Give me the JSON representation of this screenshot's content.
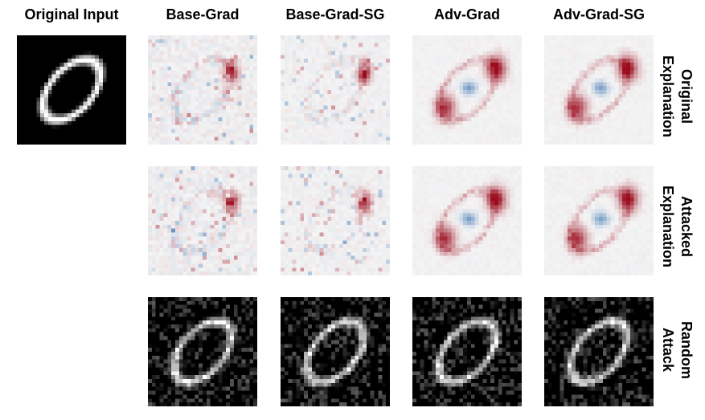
{
  "columns": [
    {
      "key": "original_input",
      "title": "Original Input"
    },
    {
      "key": "base_grad",
      "title": "Base-Grad"
    },
    {
      "key": "base_grad_sg",
      "title": "Base-Grad-SG"
    },
    {
      "key": "adv_grad",
      "title": "Adv-Grad"
    },
    {
      "key": "adv_grad_sg",
      "title": "Adv-Grad-SG"
    }
  ],
  "rows": [
    {
      "key": "original_explanation",
      "line1": "Original",
      "line2": "Explanation"
    },
    {
      "key": "attacked_explanation",
      "line1": "Attacked",
      "line2": "Explanation"
    },
    {
      "key": "random_attack",
      "line1": "Random",
      "line2": "Attack"
    }
  ],
  "colors": {
    "positive": "#9b0d1e",
    "negative": "#1e5fa6",
    "neutral": "#f4f4f4",
    "digit": "#ffffff",
    "background": "#000000"
  }
}
